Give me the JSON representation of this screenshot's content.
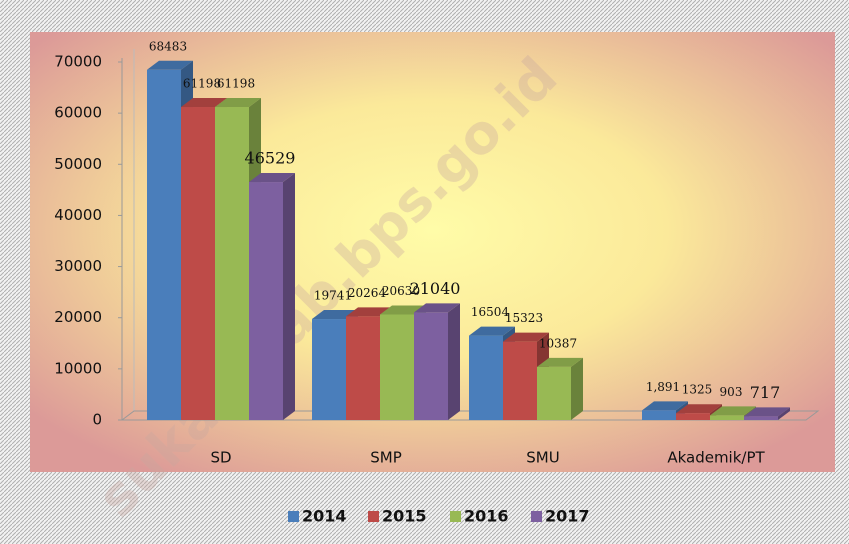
{
  "chart_data": {
    "type": "bar3d",
    "categories": [
      "SD",
      "SMP",
      "SMU",
      "Akademik/PT"
    ],
    "series": [
      {
        "name": "2014",
        "color": "#4a7ebb",
        "values": [
          68483,
          19741,
          16504,
          1891
        ],
        "value_labels": [
          "68483",
          "19741",
          "16504",
          "1,891"
        ]
      },
      {
        "name": "2015",
        "color": "#be4b48",
        "values": [
          61198,
          20264,
          15323,
          1325
        ]
      },
      {
        "name": "2016",
        "color": "#98b954",
        "values": [
          61198,
          20630,
          10387,
          903
        ]
      },
      {
        "name": "2017",
        "color": "#7d60a0",
        "values": [
          46529,
          21040,
          null,
          717
        ]
      }
    ],
    "ylim": [
      0,
      70000
    ],
    "yticks": [
      0,
      10000,
      20000,
      30000,
      40000,
      50000,
      60000,
      70000
    ],
    "legend": "bottom",
    "watermark": "sukarokab.bps.go.id"
  }
}
